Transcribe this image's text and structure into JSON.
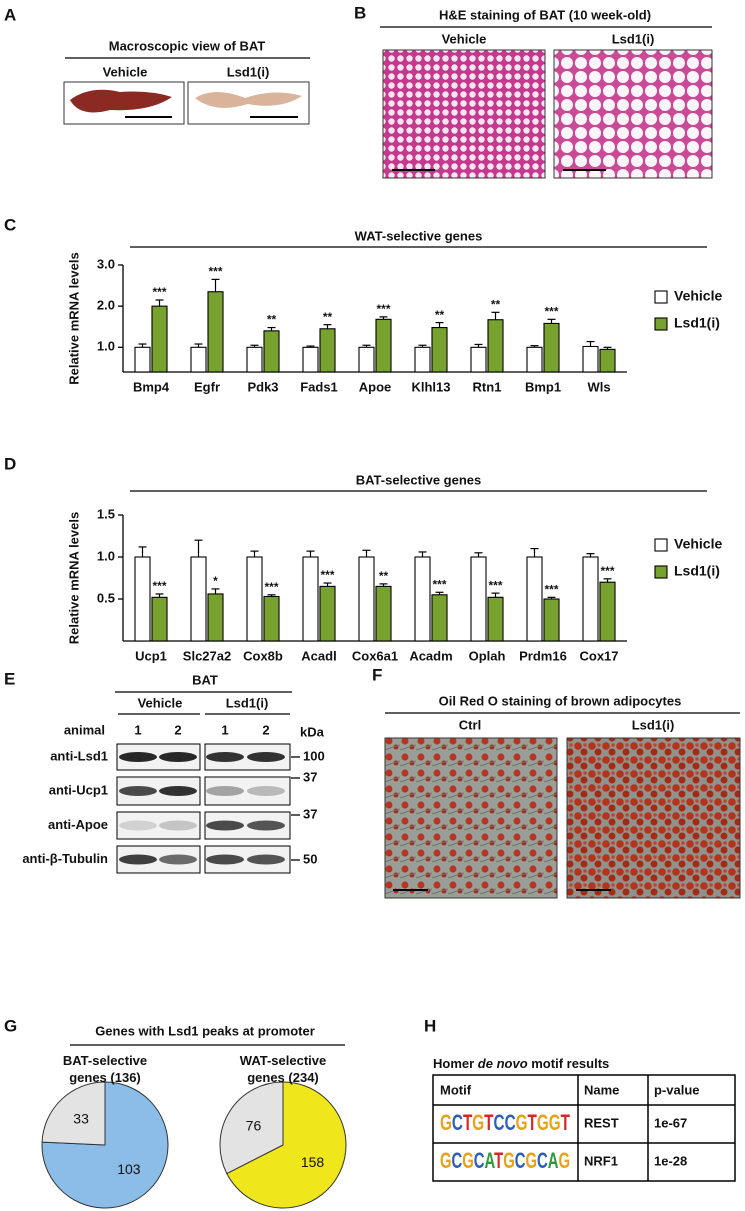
{
  "panels": {
    "A": {
      "letter": "A",
      "title": "Macroscopic view of BAT",
      "columns": [
        "Vehicle",
        "Lsd1(i)"
      ]
    },
    "B": {
      "letter": "B",
      "title": "H&E staining of BAT (10 week-old)",
      "columns": [
        "Vehicle",
        "Lsd1(i)"
      ]
    },
    "C": {
      "letter": "C"
    },
    "D": {
      "letter": "D"
    },
    "E": {
      "letter": "E",
      "title": "BAT",
      "groups": [
        "Vehicle",
        "Lsd1(i)"
      ],
      "animal_label": "animal",
      "animals": [
        1,
        2,
        1,
        2
      ],
      "unit": "kDa",
      "rows": [
        {
          "antibody": "anti-Lsd1",
          "kda": 100
        },
        {
          "antibody": "anti-Ucp1",
          "kda": 37
        },
        {
          "antibody": "anti-Apoe",
          "kda": 37
        },
        {
          "antibody": "anti-β-Tubulin",
          "kda": 50
        }
      ]
    },
    "F": {
      "letter": "F",
      "title": "Oil Red O staining of brown adipocytes",
      "columns": [
        "Ctrl",
        "Lsd1(i)"
      ]
    },
    "G": {
      "letter": "G",
      "title": "Genes with Lsd1 peaks at promoter"
    },
    "H": {
      "letter": "H",
      "title_parts": [
        "Homer ",
        "de novo",
        " motif results"
      ],
      "header": [
        "Motif",
        "Name",
        "p-value"
      ],
      "rows": [
        [
          "GCTGTCCGTGGT",
          "REST",
          "1e-67"
        ],
        [
          "GCGCATGCGCAG",
          "NRF1",
          "1e-28"
        ]
      ]
    }
  },
  "chart_data": [
    {
      "type": "bar",
      "title": "WAT-selective genes",
      "y_label": "Relative mRNA levels",
      "categories": [
        "Bmp4",
        "Egfr",
        "Pdk3",
        "Fads1",
        "Apoe",
        "Klhl13",
        "Rtn1",
        "Bmp1",
        "Wls"
      ],
      "series": [
        {
          "name": "Vehicle",
          "color": "#ffffff",
          "values": [
            1.0,
            1.0,
            1.0,
            1.0,
            1.0,
            1.0,
            1.0,
            1.0,
            1.02
          ],
          "errors": [
            0.08,
            0.08,
            0.05,
            0.03,
            0.05,
            0.05,
            0.07,
            0.04,
            0.12
          ]
        },
        {
          "name": "Lsd1(i)",
          "color": "#78a22f",
          "values": [
            2.0,
            2.35,
            1.4,
            1.45,
            1.68,
            1.48,
            1.67,
            1.58,
            0.95
          ],
          "errors": [
            0.15,
            0.3,
            0.08,
            0.1,
            0.06,
            0.12,
            0.18,
            0.1,
            0.05
          ],
          "significance": [
            "***",
            "***",
            "**",
            "**",
            "***",
            "**",
            "**",
            "***",
            null
          ]
        }
      ],
      "ylim": [
        0.4,
        3.0
      ],
      "yticks": [
        {
          "value": 1.0,
          "label": "1.0"
        },
        {
          "value": 2.0,
          "label": "2.0"
        },
        {
          "value": 3.0,
          "label": "3.0"
        }
      ]
    },
    {
      "type": "bar",
      "title": "BAT-selective genes",
      "y_label": "Relative mRNA levels",
      "categories": [
        "Ucp1",
        "Slc27a2",
        "Cox8b",
        "Acadl",
        "Cox6a1",
        "Acadm",
        "Oplah",
        "Prdm16",
        "Cox17"
      ],
      "series": [
        {
          "name": "Vehicle",
          "color": "#ffffff",
          "values": [
            1.0,
            1.0,
            1.0,
            1.0,
            1.0,
            1.0,
            1.0,
            1.0,
            1.0
          ],
          "errors": [
            0.12,
            0.2,
            0.07,
            0.07,
            0.08,
            0.06,
            0.05,
            0.1,
            0.04
          ]
        },
        {
          "name": "Lsd1(i)",
          "color": "#78a22f",
          "values": [
            0.52,
            0.56,
            0.53,
            0.65,
            0.65,
            0.55,
            0.52,
            0.5,
            0.7
          ],
          "errors": [
            0.04,
            0.06,
            0.02,
            0.04,
            0.03,
            0.03,
            0.05,
            0.02,
            0.04
          ],
          "significance": [
            "***",
            "*",
            "***",
            "***",
            "**",
            "***",
            "***",
            "***",
            "***"
          ]
        }
      ],
      "ylim": [
        0,
        1.5
      ],
      "yticks": [
        0.5,
        {
          "value": 1.0,
          "label": "1.0"
        },
        1.5
      ]
    },
    {
      "type": "pie",
      "title": "BAT-selective genes (136)",
      "values": [
        103,
        33
      ],
      "colors": [
        "#8bbde8",
        "#e3e3e3"
      ]
    },
    {
      "type": "pie",
      "title": "WAT-selective genes (234)",
      "values": [
        158,
        76
      ],
      "colors": [
        "#f0e61c",
        "#e3e3e3"
      ]
    }
  ]
}
